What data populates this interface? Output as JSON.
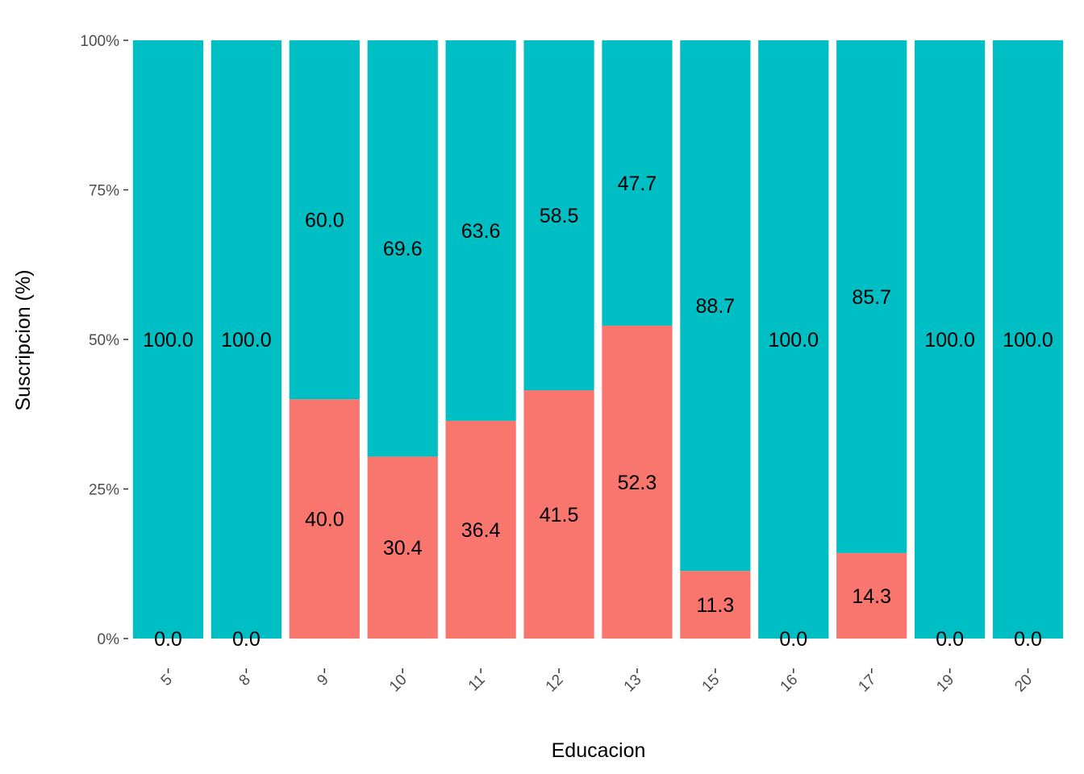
{
  "chart_data": {
    "type": "bar",
    "stacked": true,
    "percent": true,
    "xlabel": "Educacion",
    "ylabel": "Suscripcion  (%)",
    "ylim": [
      0,
      100
    ],
    "y_ticks": [
      0,
      25,
      50,
      75,
      100
    ],
    "y_tick_labels": [
      "0%",
      "25%",
      "50%",
      "75%",
      "100%"
    ],
    "grid": false,
    "categories": [
      "5",
      "8",
      "9",
      "10",
      "11",
      "12",
      "13",
      "15",
      "16",
      "17",
      "19",
      "20"
    ],
    "series": [
      {
        "name": "bottom",
        "color": "#F8766D",
        "values": [
          0.0,
          0.0,
          40.0,
          30.4,
          36.4,
          41.5,
          52.3,
          11.3,
          0.0,
          14.3,
          0.0,
          0.0
        ],
        "labels": [
          "0.0",
          "0.0",
          "40.0",
          "30.4",
          "36.4",
          "41.5",
          "52.3",
          "11.3",
          "0.0",
          "14.3",
          "0.0",
          "0.0"
        ]
      },
      {
        "name": "top",
        "color": "#00BFC4",
        "values": [
          100.0,
          100.0,
          60.0,
          69.6,
          63.6,
          58.5,
          47.7,
          88.7,
          100.0,
          85.7,
          100.0,
          100.0
        ],
        "labels": [
          "100.0",
          "100.0",
          "60.0",
          "69.6",
          "63.6",
          "58.5",
          "47.7",
          "88.7",
          "100.0",
          "85.7",
          "100.0",
          "100.0"
        ]
      }
    ]
  }
}
